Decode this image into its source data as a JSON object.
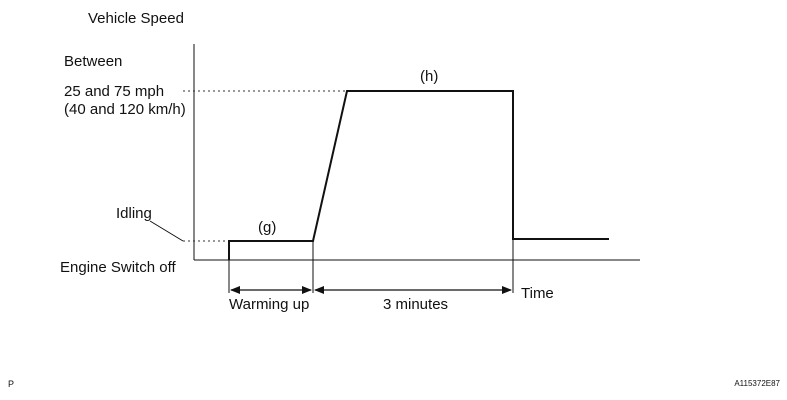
{
  "diagram": {
    "y_axis_title": "Vehicle Speed",
    "speed_between": "Between",
    "speed_mph": "25 and 75 mph",
    "speed_kmh": "(40 and 120 km/h)",
    "idling": "Idling",
    "engine_switch_off": "Engine Switch off",
    "label_g": "(g)",
    "label_h": "(h)",
    "warming_up": "Warming up",
    "three_minutes": "3 minutes",
    "time": "Time",
    "corner_letter": "P",
    "figure_code": "A115372E87"
  }
}
